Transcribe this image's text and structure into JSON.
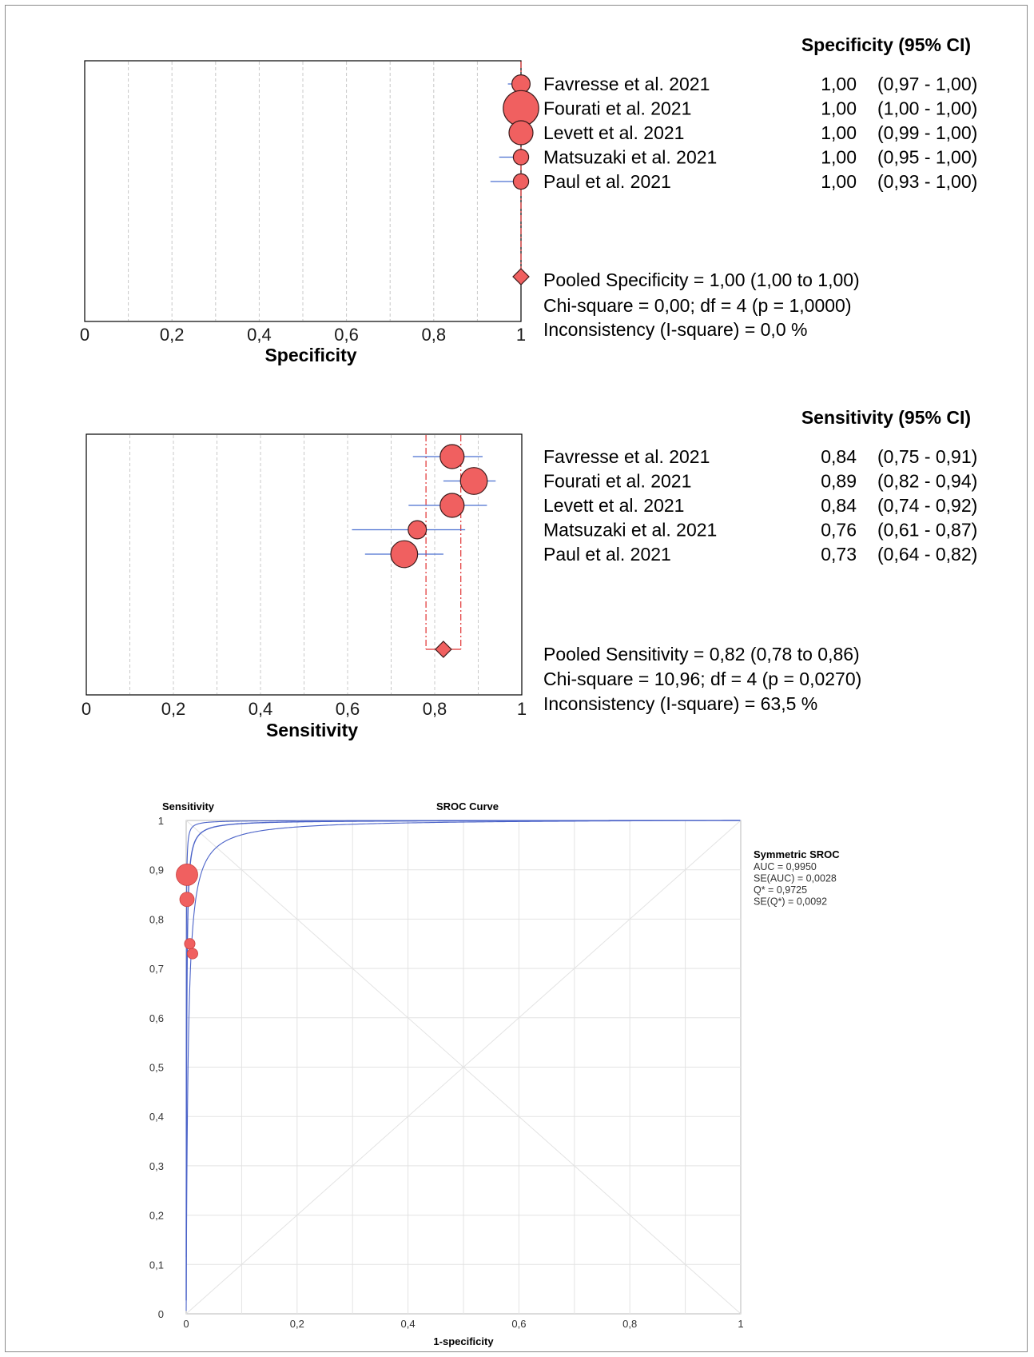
{
  "colors": {
    "marker": "#f06060",
    "ci_line": "#4a6fd0",
    "pooled_line": "#e03030",
    "sroc": "#4a62c8",
    "axis": "#000000",
    "grid": "#d9d9d9"
  },
  "chart_data": [
    {
      "type": "forest",
      "header": "Specificity (95% CI)",
      "xlabel": "Specificity",
      "xlim": [
        0,
        1
      ],
      "tick_labels": [
        "0",
        "0,2",
        "0,4",
        "0,6",
        "0,8",
        "1"
      ],
      "studies": [
        {
          "name": "Favresse et al. 2021",
          "value": 1.0,
          "ci": [
            0.97,
            1.0
          ],
          "value_label": "1,00",
          "ci_label": "(0,97 - 1,00)",
          "weight": 2
        },
        {
          "name": "Fourati et al. 2021",
          "value": 1.0,
          "ci": [
            1.0,
            1.0
          ],
          "value_label": "1,00",
          "ci_label": "(1,00 - 1,00)",
          "weight": 5
        },
        {
          "name": "Levett et al. 2021",
          "value": 1.0,
          "ci": [
            0.99,
            1.0
          ],
          "value_label": "1,00",
          "ci_label": "(0,99 - 1,00)",
          "weight": 3
        },
        {
          "name": "Matsuzaki et al. 2021",
          "value": 1.0,
          "ci": [
            0.95,
            1.0
          ],
          "value_label": "1,00",
          "ci_label": "(0,95 - 1,00)",
          "weight": 1.5
        },
        {
          "name": "Paul et al. 2021",
          "value": 1.0,
          "ci": [
            0.93,
            1.0
          ],
          "value_label": "1,00",
          "ci_label": "(0,93 - 1,00)",
          "weight": 1.5
        }
      ],
      "pooled": {
        "value": 1.0,
        "ci": [
          1.0,
          1.0
        ]
      },
      "stats": [
        "Pooled Specificity = 1,00 (1,00 to 1,00)",
        "Chi-square = 0,00; df =  4 (p = 1,0000)",
        "Inconsistency (I-square) = 0,0 %"
      ]
    },
    {
      "type": "forest",
      "header": "Sensitivity (95% CI)",
      "xlabel": "Sensitivity",
      "xlim": [
        0,
        1
      ],
      "tick_labels": [
        "0",
        "0,2",
        "0,4",
        "0,6",
        "0,8",
        "1"
      ],
      "studies": [
        {
          "name": "Favresse et al. 2021",
          "value": 0.84,
          "ci": [
            0.75,
            0.91
          ],
          "value_label": "0,84",
          "ci_label": "(0,75 - 0,91)",
          "weight": 3
        },
        {
          "name": "Fourati et al. 2021",
          "value": 0.89,
          "ci": [
            0.82,
            0.94
          ],
          "value_label": "0,89",
          "ci_label": "(0,82 - 0,94)",
          "weight": 3.5
        },
        {
          "name": "Levett et al. 2021",
          "value": 0.84,
          "ci": [
            0.74,
            0.92
          ],
          "value_label": "0,84",
          "ci_label": "(0,74 - 0,92)",
          "weight": 3
        },
        {
          "name": "Matsuzaki et al. 2021",
          "value": 0.76,
          "ci": [
            0.61,
            0.87
          ],
          "value_label": "0,76",
          "ci_label": "(0,61 - 0,87)",
          "weight": 2
        },
        {
          "name": "Paul et al. 2021",
          "value": 0.73,
          "ci": [
            0.64,
            0.82
          ],
          "value_label": "0,73",
          "ci_label": "(0,64 - 0,82)",
          "weight": 3.5
        }
      ],
      "pooled": {
        "value": 0.82,
        "ci": [
          0.78,
          0.86
        ]
      },
      "stats": [
        "Pooled Sensitivity = 0,82 (0,78 to 0,86)",
        "Chi-square = 10,96; df =  4 (p = 0,0270)",
        "Inconsistency (I-square) = 63,5 %"
      ]
    },
    {
      "type": "scatter",
      "title": "SROC Curve",
      "ylabel": "Sensitivity",
      "xlabel": "1-specificity",
      "xlim": [
        0,
        1
      ],
      "ylim": [
        0,
        1
      ],
      "x_tick_labels": [
        "0",
        "0,2",
        "0,4",
        "0,6",
        "0,8",
        "1"
      ],
      "y_tick_labels": [
        "0",
        "0,1",
        "0,2",
        "0,3",
        "0,4",
        "0,5",
        "0,6",
        "0,7",
        "0,8",
        "0,9",
        "1"
      ],
      "grid": true,
      "points": [
        {
          "x": 0.0,
          "y": 0.89,
          "size": 3.5
        },
        {
          "x": 0.0,
          "y": 0.84,
          "size": 2
        },
        {
          "x": 0.005,
          "y": 0.75,
          "size": 1.2
        },
        {
          "x": 0.01,
          "y": 0.73,
          "size": 1.2
        }
      ],
      "legend": {
        "title": "Symmetric SROC",
        "lines": [
          "AUC = 0,9950",
          "SE(AUC) = 0,0028",
          "Q* = 0,9725",
          "SE(Q*) = 0,0092"
        ]
      }
    }
  ]
}
